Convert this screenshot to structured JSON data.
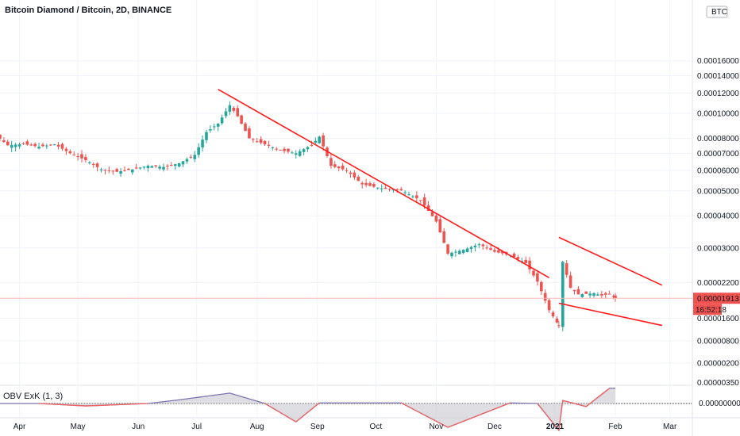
{
  "title": "Bitcoin Diamond / Bitcoin, 2D, BINANCE",
  "indicator": {
    "label": "OBV ExK (1, 3)",
    "axis_labels": [
      "0.00000350",
      "0.00000000"
    ]
  },
  "colors": {
    "up": "#26a69a",
    "down": "#ef5350",
    "trend": "#ff1a1a",
    "obv_line": "#7e74b0",
    "obv_below": "#f06060"
  },
  "chart_data": {
    "type": "candlestick",
    "title": "Bitcoin Diamond / Bitcoin, 2D, BINANCE",
    "price_axis": {
      "unit": "BTC",
      "scale": "log",
      "tick_labels": [
        "0.00016000",
        "0.00014000",
        "0.00012000",
        "0.00010000",
        "0.00008000",
        "0.00007000",
        "0.00006000",
        "0.00005000",
        "0.00004000",
        "0.00003000",
        "0.00002200",
        "0.00001600",
        "0.00000800",
        "0.00000200"
      ],
      "last_price": "0.00001913",
      "countdown": "16:52:18"
    },
    "x_tick_labels": [
      "Apr",
      "May",
      "Jun",
      "Jul",
      "Aug",
      "Sep",
      "Oct",
      "Nov",
      "Dec",
      "2021",
      "Feb",
      "Mar"
    ],
    "x_range": [
      "2020-03-10",
      "2021-03-20"
    ],
    "series_close": [
      [
        "2020-03-12",
        7.28e-05
      ],
      [
        "2020-03-18",
        8.45e-05
      ],
      [
        "2020-03-26",
        7.52e-05
      ],
      [
        "2020-04-03",
        7.6e-05
      ],
      [
        "2020-04-11",
        7.42e-05
      ],
      [
        "2020-04-19",
        7.58e-05
      ],
      [
        "2020-04-27",
        7e-05
      ],
      [
        "2020-05-05",
        6.58e-05
      ],
      [
        "2020-05-13",
        6.06e-05
      ],
      [
        "2020-05-21",
        5.93e-05
      ],
      [
        "2020-05-29",
        6.06e-05
      ],
      [
        "2020-06-06",
        6.26e-05
      ],
      [
        "2020-06-14",
        6.19e-05
      ],
      [
        "2020-06-22",
        6.4e-05
      ],
      [
        "2020-06-30",
        6.9e-05
      ],
      [
        "2020-07-06",
        8.46e-05
      ],
      [
        "2020-07-12",
        9.13e-05
      ],
      [
        "2020-07-18",
        0.0001075
      ],
      [
        "2020-07-22",
        9.74e-05
      ],
      [
        "2020-07-28",
        8e-05
      ],
      [
        "2020-08-05",
        7.58e-05
      ],
      [
        "2020-08-13",
        7.19e-05
      ],
      [
        "2020-08-21",
        7e-05
      ],
      [
        "2020-08-29",
        7.53e-05
      ],
      [
        "2020-09-02",
        8.12e-05
      ],
      [
        "2020-09-08",
        6.25e-05
      ],
      [
        "2020-09-16",
        6e-05
      ],
      [
        "2020-09-24",
        5.3e-05
      ],
      [
        "2020-10-04",
        5.11e-05
      ],
      [
        "2020-10-14",
        5.02e-05
      ],
      [
        "2020-10-24",
        4.6e-05
      ],
      [
        "2020-11-01",
        3.8e-05
      ],
      [
        "2020-11-07",
        2.85e-05
      ],
      [
        "2020-11-15",
        2.95e-05
      ],
      [
        "2020-11-23",
        3.1e-05
      ],
      [
        "2020-12-01",
        2.9e-05
      ],
      [
        "2020-12-09",
        2.82e-05
      ],
      [
        "2020-12-17",
        2.62e-05
      ],
      [
        "2020-12-23",
        2.22e-05
      ],
      [
        "2020-12-29",
        1.72e-05
      ],
      [
        "2021-01-03",
        1.5e-05
      ],
      [
        "2021-01-05",
        2.65e-05
      ],
      [
        "2021-01-09",
        2.1e-05
      ],
      [
        "2021-01-13",
        1.98e-05
      ],
      [
        "2021-01-17",
        1.99e-05
      ],
      [
        "2021-01-21",
        2e-05
      ],
      [
        "2021-01-25",
        1.96e-05
      ],
      [
        "2021-01-29",
        1.99e-05
      ],
      [
        "2021-02-01",
        1.91e-05
      ]
    ],
    "obv_close": [
      [
        "2020-03-12",
        0
      ],
      [
        "2020-04-11",
        0
      ],
      [
        "2020-05-05",
        -4e-07
      ],
      [
        "2020-06-06",
        0
      ],
      [
        "2020-06-22",
        6e-07
      ],
      [
        "2020-07-18",
        1.7e-06
      ],
      [
        "2020-08-05",
        0
      ],
      [
        "2020-08-21",
        -3e-06
      ],
      [
        "2020-09-02",
        1e-07
      ],
      [
        "2020-10-14",
        1e-07
      ],
      [
        "2020-11-07",
        -3.9e-06
      ],
      [
        "2020-12-09",
        1e-07
      ],
      [
        "2020-12-23",
        0
      ],
      [
        "2021-01-03",
        -4.4e-06
      ],
      [
        "2021-01-05",
        5e-07
      ],
      [
        "2021-01-17",
        -5e-07
      ],
      [
        "2021-01-29",
        2.5e-06
      ],
      [
        "2021-02-01",
        2.5e-06
      ]
    ],
    "trendlines": [
      {
        "from": [
          "2020-07-12",
          0.000124
        ],
        "to": [
          "2020-12-29",
          2.3e-05
        ]
      },
      {
        "from": [
          "2021-01-03",
          3.3e-05
        ],
        "to": [
          "2021-02-25",
          2.15e-05
        ]
      },
      {
        "from": [
          "2021-01-03",
          1.83e-05
        ],
        "to": [
          "2021-02-25",
          1.5e-05
        ]
      }
    ]
  }
}
